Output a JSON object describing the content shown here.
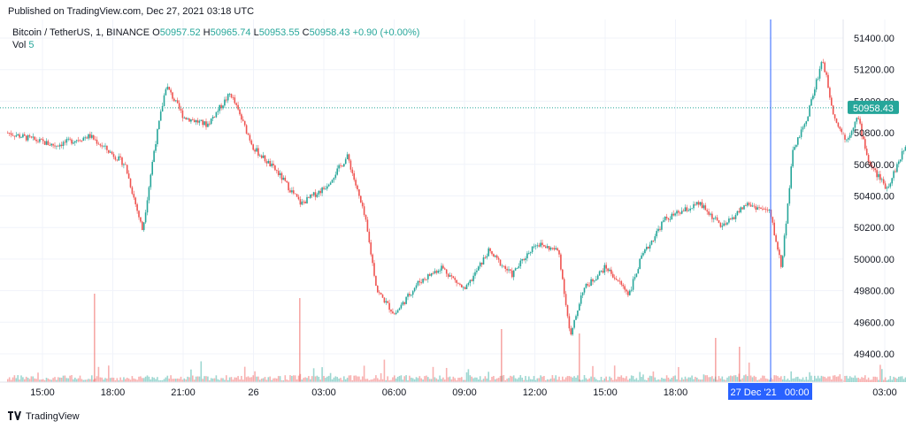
{
  "header": {
    "published": "Published on TradingView.com, Dec 27, 2021 03:18 UTC"
  },
  "legend": {
    "symbol": "Bitcoin / TetherUS, 1, BINANCE",
    "open_label": "O",
    "open": "50957.52",
    "high_label": "H",
    "high": "50965.74",
    "low_label": "L",
    "low": "50953.55",
    "close_label": "C",
    "close": "50958.43",
    "change": "+0.90 (+0.00%)",
    "vol_label": "Vol",
    "vol": "5"
  },
  "footer": {
    "logo_text": "TradingView"
  },
  "colors": {
    "up": "#26a69a",
    "down": "#ef5350",
    "crosshair": "#2962ff",
    "grid": "#f0f3fa"
  },
  "chart_data": {
    "type": "candlestick",
    "symbol": "Bitcoin / TetherUS",
    "interval": "1",
    "exchange": "BINANCE",
    "ylim": [
      49300,
      51500
    ],
    "y_ticks": [
      "51400.00",
      "51200.00",
      "51000.00",
      "50800.00",
      "50600.00",
      "50400.00",
      "50200.00",
      "50000.00",
      "49800.00",
      "49600.00",
      "49400.00"
    ],
    "x_ticks": [
      "15:00",
      "18:00",
      "21:00",
      "26",
      "03:00",
      "06:00",
      "09:00",
      "12:00",
      "15:00",
      "18:00",
      "21:00",
      "00:00",
      "03:00"
    ],
    "last_price": "50958.43",
    "crosshair_label": "27 Dec '21   00:00",
    "grid": true,
    "price_path_approx": [
      [
        "12:00",
        50800
      ],
      [
        "14:00",
        50720
      ],
      [
        "15:30",
        50780
      ],
      [
        "17:00",
        50600
      ],
      [
        "17:45",
        50180
      ],
      [
        "18:15",
        50700
      ],
      [
        "18:45",
        51100
      ],
      [
        "19:30",
        50900
      ],
      [
        "20:30",
        50850
      ],
      [
        "21:30",
        51050
      ],
      [
        "22:30",
        50700
      ],
      [
        "23:30",
        50550
      ],
      [
        "00:30",
        50350
      ],
      [
        "01:30",
        50450
      ],
      [
        "02:30",
        50650
      ],
      [
        "03:15",
        50250
      ],
      [
        "03:45",
        49800
      ],
      [
        "04:30",
        49650
      ],
      [
        "05:30",
        49850
      ],
      [
        "06:30",
        49950
      ],
      [
        "07:30",
        49800
      ],
      [
        "08:30",
        50050
      ],
      [
        "09:30",
        49900
      ],
      [
        "10:30",
        50100
      ],
      [
        "11:30",
        50050
      ],
      [
        "12:00",
        49500
      ],
      [
        "12:30",
        49800
      ],
      [
        "13:30",
        49950
      ],
      [
        "14:30",
        49780
      ],
      [
        "15:00",
        50000
      ],
      [
        "16:00",
        50250
      ],
      [
        "17:30",
        50350
      ],
      [
        "18:30",
        50200
      ],
      [
        "19:30",
        50350
      ],
      [
        "20:30",
        50300
      ],
      [
        "21:00",
        49950
      ],
      [
        "21:30",
        50700
      ],
      [
        "22:00",
        50850
      ],
      [
        "22:45",
        51270
      ],
      [
        "23:15",
        50900
      ],
      [
        "23:45",
        50750
      ],
      [
        "00:15",
        50900
      ],
      [
        "00:45",
        50600
      ],
      [
        "01:30",
        50450
      ],
      [
        "02:15",
        50700
      ],
      [
        "03:00",
        50850
      ],
      [
        "03:18",
        50958
      ]
    ]
  }
}
